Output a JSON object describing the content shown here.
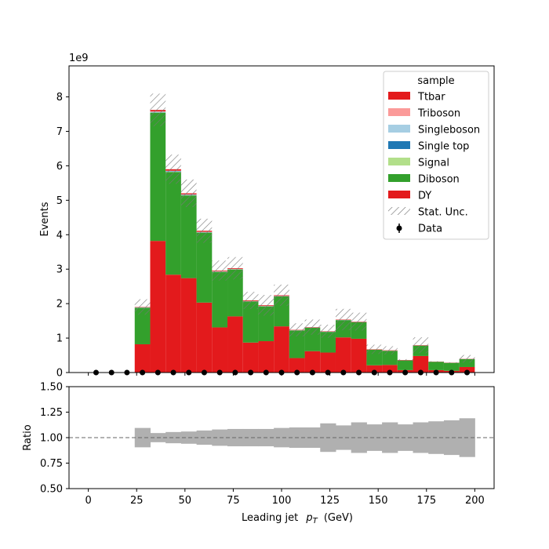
{
  "chart_data": {
    "type": "bar",
    "stacked": true,
    "bin_edges": [
      0,
      8,
      16,
      24,
      32,
      40,
      48,
      56,
      64,
      72,
      80,
      88,
      96,
      104,
      112,
      120,
      128,
      136,
      144,
      152,
      160,
      168,
      176,
      184,
      192,
      200
    ],
    "series": [
      {
        "name": "DY",
        "color": "#e31a1c",
        "values": [
          0,
          0,
          0,
          0.82,
          3.82,
          2.84,
          2.74,
          2.03,
          1.31,
          1.63,
          0.87,
          0.91,
          1.34,
          0.42,
          0.62,
          0.58,
          1.02,
          0.98,
          0.21,
          0.22,
          0.07,
          0.48,
          0.07,
          0.05,
          0.16
        ]
      },
      {
        "name": "Diboson",
        "color": "#33a02c",
        "values": [
          0,
          0,
          0,
          1.06,
          3.72,
          2.98,
          2.4,
          2.03,
          1.61,
          1.36,
          1.19,
          1.01,
          0.87,
          0.8,
          0.68,
          0.6,
          0.5,
          0.48,
          0.45,
          0.41,
          0.28,
          0.3,
          0.24,
          0.23,
          0.23
        ]
      },
      {
        "name": "Signal",
        "color": "#b2df8a",
        "values": [
          0,
          0,
          0,
          0.003,
          0.01,
          0.01,
          0.008,
          0.006,
          0.005,
          0.004,
          0.003,
          0.003,
          0.003,
          0.002,
          0.002,
          0.002,
          0.002,
          0.002,
          0.001,
          0.001,
          0.001,
          0.001,
          0.001,
          0.001,
          0.001
        ]
      },
      {
        "name": "Single top",
        "color": "#1f78b4",
        "values": [
          0,
          0,
          0,
          0.003,
          0.01,
          0.01,
          0.008,
          0.006,
          0.005,
          0.004,
          0.003,
          0.003,
          0.003,
          0.002,
          0.002,
          0.002,
          0.002,
          0.002,
          0.001,
          0.001,
          0.001,
          0.001,
          0.001,
          0.001,
          0.001
        ]
      },
      {
        "name": "Singleboson",
        "color": "#a6cee3",
        "values": [
          0,
          0,
          0,
          0.003,
          0.01,
          0.01,
          0.008,
          0.006,
          0.005,
          0.004,
          0.003,
          0.003,
          0.003,
          0.002,
          0.002,
          0.002,
          0.002,
          0.002,
          0.001,
          0.001,
          0.001,
          0.001,
          0.001,
          0.001,
          0.001
        ]
      },
      {
        "name": "Triboson",
        "color": "#fb9a99",
        "values": [
          0,
          0,
          0,
          0.003,
          0.01,
          0.01,
          0.008,
          0.006,
          0.005,
          0.004,
          0.003,
          0.003,
          0.003,
          0.002,
          0.002,
          0.002,
          0.002,
          0.002,
          0.001,
          0.001,
          0.001,
          0.001,
          0.001,
          0.001,
          0.001
        ]
      },
      {
        "name": "Ttbar",
        "color": "#e31a1c",
        "values": [
          0,
          0,
          0,
          0.01,
          0.04,
          0.04,
          0.03,
          0.03,
          0.02,
          0.02,
          0.02,
          0.02,
          0.02,
          0.01,
          0.01,
          0.01,
          0.01,
          0.01,
          0.01,
          0.01,
          0.01,
          0.01,
          0.005,
          0.005,
          0.005
        ]
      }
    ],
    "stat_unc_total": [
      0,
      0,
      0,
      0.45,
      0.95,
      0.85,
      0.8,
      0.7,
      0.58,
      0.65,
      0.5,
      0.6,
      0.62,
      0.38,
      0.44,
      0.38,
      0.62,
      0.52,
      0.27,
      0.24,
      0.05,
      0.46,
      0.02,
      0.02,
      0.22
    ],
    "data": {
      "name": "Data",
      "x": [
        4,
        12,
        20,
        28,
        36,
        44,
        52,
        60,
        68,
        76,
        84,
        92,
        100,
        108,
        116,
        124,
        132,
        140,
        148,
        156,
        164,
        172,
        180,
        188,
        196
      ],
      "y": [
        0,
        0,
        0,
        0,
        0,
        0,
        0,
        0,
        0,
        0,
        0,
        0,
        0,
        0,
        0,
        0,
        0,
        0,
        0,
        0,
        0,
        0,
        0,
        0,
        0
      ]
    },
    "ratio_unc": [
      null,
      null,
      null,
      0.095,
      0.045,
      0.055,
      0.06,
      0.07,
      0.08,
      0.085,
      0.085,
      0.085,
      0.095,
      0.1,
      0.1,
      0.14,
      0.12,
      0.15,
      0.13,
      0.15,
      0.13,
      0.15,
      0.16,
      0.17,
      0.19
    ],
    "main_panel": {
      "ylabel": "Events",
      "scale_label": "1e9",
      "ylim": [
        0,
        8.9
      ],
      "yticks": [
        "0",
        "1",
        "2",
        "3",
        "4",
        "5",
        "6",
        "7",
        "8"
      ]
    },
    "ratio_panel": {
      "ylabel": "Ratio",
      "ylim": [
        0.5,
        1.5
      ],
      "yticks": [
        "0.50",
        "0.75",
        "1.00",
        "1.25",
        "1.50"
      ],
      "reference_line": 1.0
    },
    "xlabel": "Leading jet  $p_T$ (GeV)",
    "xlabel_main": "Leading jet",
    "xlabel_math": "p",
    "xlabel_sub": "T",
    "xlabel_unit": "(GeV)",
    "xlim": [
      -10,
      210
    ],
    "xticks": [
      "0",
      "25",
      "50",
      "75",
      "100",
      "125",
      "150",
      "175",
      "200"
    ],
    "legend": {
      "title": "sample",
      "placement": "top-right",
      "entries": [
        "Ttbar",
        "Triboson",
        "Singleboson",
        "Single top",
        "Signal",
        "Diboson",
        "DY",
        "Stat. Unc.",
        "Data"
      ]
    },
    "colors": {
      "uncertainty_band": "#b0b0b0",
      "hatch": "#777777",
      "data_marker": "#000000"
    }
  }
}
